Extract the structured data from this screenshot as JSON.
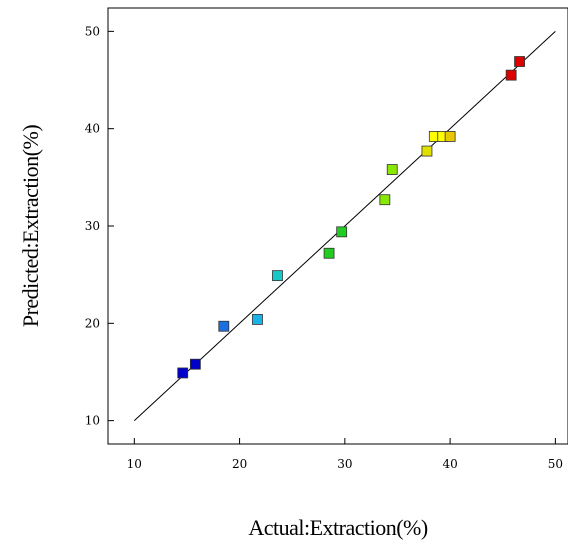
{
  "chart_data": {
    "type": "scatter",
    "title": "",
    "xlabel": "Actual:Extraction(%)",
    "ylabel": "Predicted:Extraction(%)",
    "xlim": [
      7.5,
      51.2
    ],
    "ylim": [
      7.6,
      52.4
    ],
    "xticks": [
      10,
      20,
      30,
      40,
      50
    ],
    "yticks": [
      10,
      20,
      30,
      40,
      50
    ],
    "grid": false,
    "legend": "none",
    "reference_line": {
      "from": [
        10,
        10
      ],
      "to": [
        50,
        50
      ],
      "color": "#000000"
    },
    "points": [
      {
        "x": 14.6,
        "y": 14.9,
        "color": "#0000cc"
      },
      {
        "x": 15.8,
        "y": 15.8,
        "color": "#0000cc"
      },
      {
        "x": 18.5,
        "y": 19.7,
        "color": "#1c6fe0"
      },
      {
        "x": 21.7,
        "y": 20.4,
        "color": "#18b4e8"
      },
      {
        "x": 23.6,
        "y": 24.9,
        "color": "#18c8c8"
      },
      {
        "x": 28.5,
        "y": 27.2,
        "color": "#22cc22"
      },
      {
        "x": 29.7,
        "y": 29.4,
        "color": "#22cc22"
      },
      {
        "x": 33.8,
        "y": 32.7,
        "color": "#88e800"
      },
      {
        "x": 34.5,
        "y": 35.8,
        "color": "#88e800"
      },
      {
        "x": 37.8,
        "y": 37.7,
        "color": "#e0e000"
      },
      {
        "x": 38.5,
        "y": 39.2,
        "color": "#ffff00"
      },
      {
        "x": 39.3,
        "y": 39.2,
        "color": "#ffff00"
      },
      {
        "x": 40.0,
        "y": 39.2,
        "color": "#e8c800"
      },
      {
        "x": 45.8,
        "y": 45.5,
        "color": "#dd0000"
      },
      {
        "x": 46.6,
        "y": 46.9,
        "color": "#dd0000"
      }
    ]
  }
}
